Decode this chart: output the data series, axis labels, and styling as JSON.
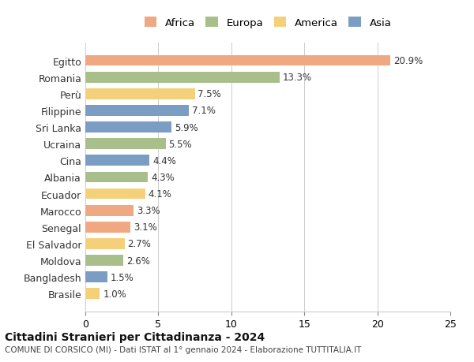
{
  "countries": [
    "Egitto",
    "Romania",
    "Perù",
    "Filippine",
    "Sri Lanka",
    "Ucraina",
    "Cina",
    "Albania",
    "Ecuador",
    "Marocco",
    "Senegal",
    "El Salvador",
    "Moldova",
    "Bangladesh",
    "Brasile"
  ],
  "values": [
    20.9,
    13.3,
    7.5,
    7.1,
    5.9,
    5.5,
    4.4,
    4.3,
    4.1,
    3.3,
    3.1,
    2.7,
    2.6,
    1.5,
    1.0
  ],
  "continents": [
    "Africa",
    "Europa",
    "America",
    "Asia",
    "Asia",
    "Europa",
    "Asia",
    "Europa",
    "America",
    "Africa",
    "Africa",
    "America",
    "Europa",
    "Asia",
    "America"
  ],
  "continent_colors": {
    "Africa": "#F0A882",
    "Europa": "#A8BF8C",
    "America": "#F5D07A",
    "Asia": "#7B9DC4"
  },
  "legend_order": [
    "Africa",
    "Europa",
    "America",
    "Asia"
  ],
  "title": "Cittadini Stranieri per Cittadinanza - 2024",
  "subtitle": "COMUNE DI CORSICO (MI) - Dati ISTAT al 1° gennaio 2024 - Elaborazione TUTTITALIA.IT",
  "xlim": [
    0,
    25
  ],
  "xticks": [
    0,
    5,
    10,
    15,
    20,
    25
  ],
  "bg_color": "#FFFFFF",
  "grid_color": "#CCCCCC",
  "bar_height": 0.65
}
